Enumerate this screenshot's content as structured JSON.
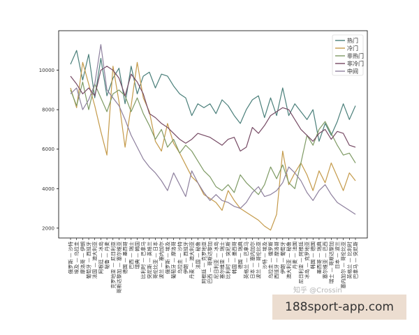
{
  "chart_data": {
    "type": "line",
    "ylim": [
      1500,
      12000
    ],
    "yticks": [
      "2000",
      "4000",
      "6000",
      "8000",
      "10000"
    ],
    "grid": false,
    "legend_position": "top-right",
    "categories": [
      "俄罗斯 — 沙特",
      "埃及 — 乌拉圭",
      "摩洛哥 — 伊朗",
      "葡萄牙 — 西班牙",
      "法国 — 澳大利亚",
      "阿根廷 — 冰岛",
      "秘鲁 — 丹麦",
      "克罗地亚 — 尼日利亚",
      "哥斯达黎加 — 塞尔维亚",
      "德国 — 墨西哥",
      "巴西 — 瑞士",
      "瑞典 — 韩国",
      "比利时 — 巴拿马",
      "突尼斯 — 英格兰",
      "哥伦比亚 — 日本",
      "波兰 — 塞内加尔",
      "俄罗斯 — 埃及",
      "葡萄牙 — 摩洛哥",
      "乌拉圭 — 沙特",
      "伊朗 — 西班牙",
      "丹麦 — 澳大利亚",
      "法国 — 秘鲁",
      "阿根廷 — 克罗地亚",
      "巴西 — 哥斯达黎加",
      "尼日利亚 — 冰岛",
      "塞尔维亚 — 瑞士",
      "比利时 — 突尼斯",
      "韩国 — 墨西哥",
      "德国 — 瑞典",
      "英格兰 — 巴拿马",
      "日本 — 塞内加尔",
      "波兰 — 哥伦比亚",
      "沙特 — 埃及",
      "乌拉圭 — 俄罗斯",
      "西班牙 — 摩洛哥",
      "伊朗 — 葡萄牙",
      "澳大利亚 — 秘鲁",
      "丹麦 — 法国",
      "尼日利亚 — 阿根廷",
      "冰岛 — 克罗地亚",
      "韩国 — 德国",
      "墨西哥 — 瑞典",
      "塞尔维亚 — 巴西",
      "瑞士 — 哥斯达黎加",
      "日本 — 波兰",
      "塞内加尔 — 哥伦比亚",
      "英格兰 — 比利时",
      "巴拿马 — 突尼斯"
    ],
    "series": [
      {
        "name": "热门",
        "color": "#4a7f7a",
        "values": [
          10300,
          11000,
          9500,
          10800,
          8600,
          10600,
          8700,
          9600,
          10100,
          8300,
          10200,
          8800,
          9700,
          9900,
          9100,
          9800,
          9700,
          9200,
          8800,
          8600,
          7700,
          8300,
          8100,
          8300,
          7800,
          8500,
          8200,
          7700,
          7300,
          8000,
          8500,
          8700,
          7600,
          8600,
          7700,
          9100,
          7700,
          8300,
          7900,
          7500,
          8000,
          6400,
          7300,
          6700,
          7400,
          8300,
          7500,
          8200
        ]
      },
      {
        "name": "冷门",
        "color": "#c49a4a",
        "values": [
          9100,
          8100,
          10400,
          9300,
          8200,
          6900,
          5700,
          10200,
          8400,
          6100,
          8200,
          10400,
          8600,
          7900,
          6400,
          5900,
          7300,
          6300,
          5800,
          5200,
          4600,
          4300,
          3700,
          3500,
          3300,
          2900,
          3900,
          3400,
          3000,
          2800,
          2600,
          2400,
          2100,
          1900,
          2700,
          5900,
          4200,
          4800,
          5300,
          4700,
          3900,
          4900,
          4300,
          5300,
          4600,
          3900,
          4800,
          4400
        ]
      },
      {
        "name": "非热门",
        "color": "#7e9a64",
        "values": [
          9000,
          8200,
          9400,
          8000,
          9300,
          8600,
          7900,
          8800,
          9000,
          8700,
          7900,
          8600,
          7800,
          7200,
          6500,
          7000,
          6100,
          6500,
          5800,
          6200,
          5900,
          5400,
          4900,
          4600,
          4100,
          3900,
          4200,
          3800,
          4700,
          4300,
          4000,
          3700,
          4200,
          5100,
          4500,
          5200,
          4300,
          4000,
          5300,
          6700,
          6200,
          7000,
          7400,
          6800,
          6200,
          5700,
          5800,
          5300
        ]
      },
      {
        "name": "非冷门",
        "color": "#764a64",
        "values": [
          9700,
          9300,
          8800,
          9100,
          8700,
          10000,
          10200,
          10000,
          9600,
          8700,
          9800,
          9400,
          8800,
          7800,
          7600,
          7300,
          7100,
          6800,
          6500,
          6300,
          6500,
          6800,
          6700,
          6600,
          6400,
          6200,
          6500,
          6600,
          5900,
          6100,
          7100,
          6800,
          7200,
          7700,
          7900,
          8100,
          8000,
          7500,
          7000,
          6700,
          6400,
          6800,
          7000,
          6500,
          6900,
          6800,
          6200,
          6100
        ]
      },
      {
        "name": "中间",
        "color": "#8d7f9d",
        "values": [
          8800,
          9100,
          8000,
          8500,
          9300,
          11300,
          9000,
          8600,
          8200,
          7500,
          6700,
          6100,
          5500,
          5100,
          4800,
          4400,
          3900,
          4800,
          4200,
          3600,
          4900,
          4300,
          3800,
          3400,
          3700,
          3400,
          3300,
          3100,
          3000,
          3300,
          3800,
          4100,
          3600,
          3700,
          3900,
          4300,
          5100,
          4800,
          4400,
          3800,
          3400,
          3900,
          4200,
          3700,
          3300,
          3100,
          2900,
          2700
        ]
      }
    ]
  },
  "watermark": {
    "text": "188sport-app.com",
    "credit": "知乎 @Crossin"
  }
}
